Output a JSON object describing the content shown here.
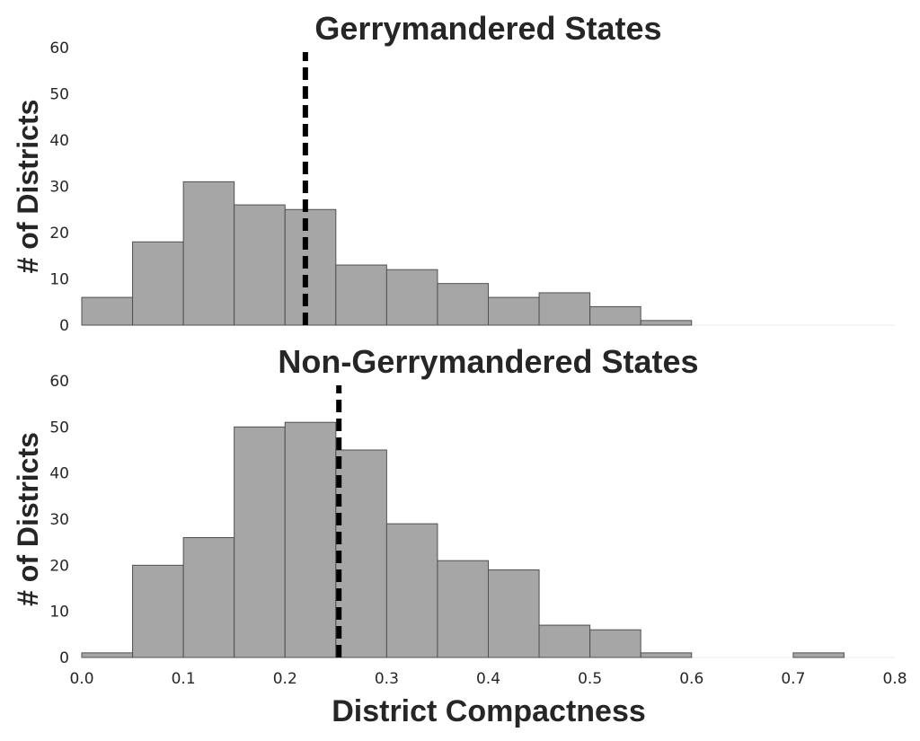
{
  "xlabel": "District Compactness",
  "chart_data": [
    {
      "type": "bar",
      "title": "Gerrymandered States",
      "ylabel": "# of Districts",
      "xlabel": "",
      "bin_edges": [
        0.0,
        0.05,
        0.1,
        0.15,
        0.2,
        0.25,
        0.3,
        0.35,
        0.4,
        0.45,
        0.5,
        0.55,
        0.6,
        0.65,
        0.7,
        0.75,
        0.8
      ],
      "values": [
        6,
        18,
        31,
        26,
        25,
        13,
        12,
        9,
        6,
        7,
        4,
        1,
        0,
        0,
        0,
        0
      ],
      "mean_line": 0.22,
      "xlim": [
        0.0,
        0.8
      ],
      "ylim": [
        0,
        60
      ],
      "yticks": [
        0,
        10,
        20,
        30,
        40,
        50,
        60
      ],
      "xticks": [],
      "grid": false
    },
    {
      "type": "bar",
      "title": "Non-Gerrymandered States",
      "ylabel": "# of Districts",
      "xlabel": "District Compactness",
      "bin_edges": [
        0.0,
        0.05,
        0.1,
        0.15,
        0.2,
        0.25,
        0.3,
        0.35,
        0.4,
        0.45,
        0.5,
        0.55,
        0.6,
        0.65,
        0.7,
        0.75,
        0.8
      ],
      "values": [
        1,
        20,
        26,
        50,
        51,
        45,
        29,
        21,
        19,
        7,
        6,
        1,
        0,
        0,
        1,
        0
      ],
      "mean_line": 0.253,
      "xlim": [
        0.0,
        0.8
      ],
      "ylim": [
        0,
        60
      ],
      "yticks": [
        0,
        10,
        20,
        30,
        40,
        50,
        60
      ],
      "xticks": [
        "0.0",
        "0.1",
        "0.2",
        "0.3",
        "0.4",
        "0.5",
        "0.6",
        "0.7",
        "0.8"
      ],
      "grid": false
    }
  ]
}
